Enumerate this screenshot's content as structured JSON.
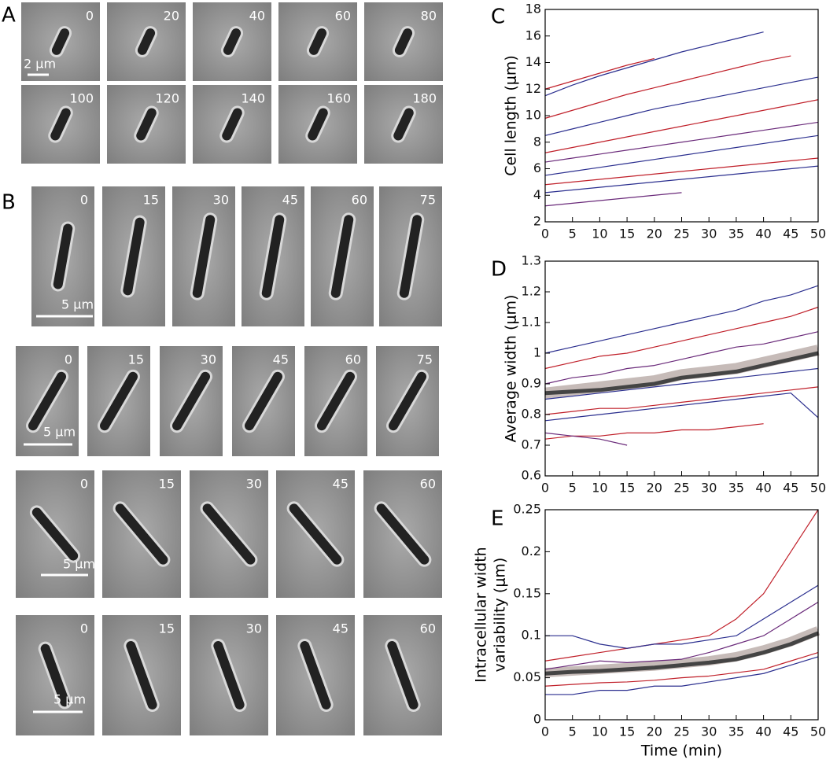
{
  "panel_A": {
    "label": "A",
    "scale_bar": "2 μm",
    "rows": [
      [
        "0",
        "20",
        "40",
        "60",
        "80"
      ],
      [
        "100",
        "120",
        "140",
        "160",
        "180"
      ]
    ]
  },
  "panel_B": {
    "label": "B",
    "rows": [
      {
        "frames": [
          "0",
          "15",
          "30",
          "45",
          "60",
          "75"
        ],
        "scale_bar": "5 μm"
      },
      {
        "frames": [
          "0",
          "15",
          "30",
          "45",
          "60",
          "75"
        ],
        "scale_bar": "5 μm"
      },
      {
        "frames": [
          "0",
          "15",
          "30",
          "45",
          "60"
        ],
        "scale_bar": "5 μm"
      },
      {
        "frames": [
          "0",
          "15",
          "30",
          "45",
          "60"
        ],
        "scale_bar": "5 μm"
      }
    ]
  },
  "chart_data": [
    {
      "type": "line",
      "panel_label": "C",
      "y_label": "Cell length (μm)",
      "x": [
        0,
        5,
        10,
        15,
        20,
        25,
        30,
        35,
        40,
        45,
        50
      ],
      "xlim": [
        0,
        50
      ],
      "xticks": [
        0,
        5,
        10,
        15,
        20,
        25,
        30,
        35,
        40,
        45,
        50
      ],
      "ylim": [
        2,
        18
      ],
      "yticks": [
        2,
        4,
        6,
        8,
        10,
        12,
        14,
        16,
        18
      ],
      "series": [
        {
          "color": "#2b2f8f",
          "values": [
            11.5,
            12.3,
            13.0,
            13.6,
            14.2,
            14.8,
            15.3,
            15.8,
            16.3,
            null,
            null
          ]
        },
        {
          "color": "#c0202a",
          "values": [
            9.8,
            10.4,
            11.0,
            11.6,
            12.1,
            12.6,
            13.1,
            13.6,
            14.1,
            14.5,
            null
          ]
        },
        {
          "color": "#2b2f8f",
          "values": [
            8.5,
            9.0,
            9.5,
            10.0,
            10.5,
            10.9,
            11.3,
            11.7,
            12.1,
            12.5,
            12.9
          ]
        },
        {
          "color": "#c0202a",
          "values": [
            7.2,
            7.6,
            8.0,
            8.4,
            8.8,
            9.2,
            9.6,
            10.0,
            10.4,
            10.8,
            11.2
          ]
        },
        {
          "color": "#6a2a7a",
          "values": [
            6.5,
            6.8,
            7.1,
            7.4,
            7.7,
            8.0,
            8.3,
            8.6,
            8.9,
            9.2,
            9.5
          ]
        },
        {
          "color": "#2b2f8f",
          "values": [
            5.5,
            5.8,
            6.1,
            6.4,
            6.7,
            7.0,
            7.3,
            7.6,
            7.9,
            8.2,
            8.5
          ]
        },
        {
          "color": "#c0202a",
          "values": [
            4.8,
            5.0,
            5.2,
            5.4,
            5.6,
            5.8,
            6.0,
            6.2,
            6.4,
            6.6,
            6.8
          ]
        },
        {
          "color": "#6a2a7a",
          "values": [
            3.2,
            3.4,
            3.6,
            3.8,
            4.0,
            4.2,
            null,
            null,
            null,
            null,
            null
          ]
        },
        {
          "color": "#2b2f8f",
          "values": [
            4.2,
            4.4,
            4.6,
            4.8,
            5.0,
            5.2,
            5.4,
            5.6,
            5.8,
            6.0,
            6.2
          ]
        },
        {
          "color": "#c0202a",
          "values": [
            12.0,
            12.6,
            13.2,
            13.8,
            14.3,
            null,
            null,
            null,
            null,
            null,
            null
          ]
        }
      ]
    },
    {
      "type": "line",
      "panel_label": "D",
      "y_label": "Average width (μm)",
      "x": [
        0,
        5,
        10,
        15,
        20,
        25,
        30,
        35,
        40,
        45,
        50
      ],
      "xlim": [
        0,
        50
      ],
      "xticks": [
        0,
        5,
        10,
        15,
        20,
        25,
        30,
        35,
        40,
        45,
        50
      ],
      "ylim": [
        0.6,
        1.3
      ],
      "yticks": [
        0.6,
        0.7,
        0.8,
        0.9,
        1,
        1.1,
        1.2,
        1.3
      ],
      "series": [
        {
          "color": "#b8aaa6",
          "width": 14,
          "values": [
            0.87,
            0.88,
            0.89,
            0.9,
            0.91,
            0.93,
            0.94,
            0.95,
            0.97,
            0.99,
            1.01
          ]
        },
        {
          "color": "#2b2f8f",
          "values": [
            1.0,
            1.02,
            1.04,
            1.06,
            1.08,
            1.1,
            1.12,
            1.14,
            1.17,
            1.19,
            1.22
          ]
        },
        {
          "color": "#c0202a",
          "values": [
            0.95,
            0.97,
            0.99,
            1.0,
            1.02,
            1.04,
            1.06,
            1.08,
            1.1,
            1.12,
            1.15
          ]
        },
        {
          "color": "#6a2a7a",
          "values": [
            0.9,
            0.92,
            0.93,
            0.95,
            0.96,
            0.98,
            1.0,
            1.02,
            1.03,
            1.05,
            1.07
          ]
        },
        {
          "color": "#2b2f8f",
          "values": [
            0.85,
            0.86,
            0.87,
            0.88,
            0.89,
            0.9,
            0.91,
            0.92,
            0.93,
            0.94,
            0.95
          ]
        },
        {
          "color": "#c0202a",
          "values": [
            0.8,
            0.81,
            0.82,
            0.82,
            0.83,
            0.84,
            0.85,
            0.86,
            0.87,
            0.88,
            0.89
          ]
        },
        {
          "color": "#c0202a",
          "values": [
            0.72,
            0.73,
            0.73,
            0.74,
            0.74,
            0.75,
            0.75,
            0.76,
            0.77,
            null,
            null
          ]
        },
        {
          "color": "#2b2f8f",
          "values": [
            0.78,
            0.79,
            0.8,
            0.81,
            0.82,
            0.83,
            0.84,
            0.85,
            0.86,
            0.87,
            0.79
          ]
        },
        {
          "color": "#6a2a7a",
          "values": [
            0.74,
            0.73,
            0.72,
            0.7,
            null,
            null,
            null,
            null,
            null,
            null,
            null
          ]
        },
        {
          "color": "#444444",
          "width": 5,
          "values": [
            0.87,
            0.875,
            0.88,
            0.89,
            0.9,
            0.92,
            0.93,
            0.94,
            0.96,
            0.98,
            1.0
          ]
        }
      ]
    },
    {
      "type": "line",
      "panel_label": "E",
      "y_label": [
        "Intracellular width",
        "variability (μm)"
      ],
      "x_label": "Time (min)",
      "x": [
        0,
        5,
        10,
        15,
        20,
        25,
        30,
        35,
        40,
        45,
        50
      ],
      "xlim": [
        0,
        50
      ],
      "xticks": [
        0,
        5,
        10,
        15,
        20,
        25,
        30,
        35,
        40,
        45,
        50
      ],
      "ylim": [
        0,
        0.25
      ],
      "yticks": [
        0,
        0.05,
        0.1,
        0.15,
        0.2,
        0.25
      ],
      "series": [
        {
          "color": "#b8aaa6",
          "width": 12,
          "values": [
            0.056,
            0.058,
            0.06,
            0.062,
            0.064,
            0.067,
            0.07,
            0.075,
            0.083,
            0.093,
            0.106
          ]
        },
        {
          "color": "#c0202a",
          "values": [
            0.07,
            0.075,
            0.08,
            0.085,
            0.09,
            0.095,
            0.1,
            0.12,
            0.15,
            0.2,
            0.25
          ]
        },
        {
          "color": "#2b2f8f",
          "values": [
            0.1,
            0.1,
            0.09,
            0.085,
            0.09,
            0.09,
            0.095,
            0.1,
            0.12,
            0.14,
            0.16
          ]
        },
        {
          "color": "#6a2a7a",
          "values": [
            0.06,
            0.065,
            0.07,
            0.068,
            0.07,
            0.072,
            0.08,
            0.09,
            0.1,
            0.12,
            0.14
          ]
        },
        {
          "color": "#2b2f8f",
          "values": [
            0.03,
            0.03,
            0.035,
            0.035,
            0.04,
            0.04,
            0.045,
            0.05,
            0.055,
            0.065,
            0.075
          ]
        },
        {
          "color": "#c0202a",
          "values": [
            0.04,
            0.042,
            0.044,
            0.045,
            0.047,
            0.05,
            0.052,
            0.056,
            0.06,
            0.07,
            0.08
          ]
        },
        {
          "color": "#444444",
          "width": 5,
          "values": [
            0.055,
            0.057,
            0.058,
            0.06,
            0.062,
            0.065,
            0.068,
            0.072,
            0.08,
            0.09,
            0.103
          ]
        }
      ]
    }
  ]
}
